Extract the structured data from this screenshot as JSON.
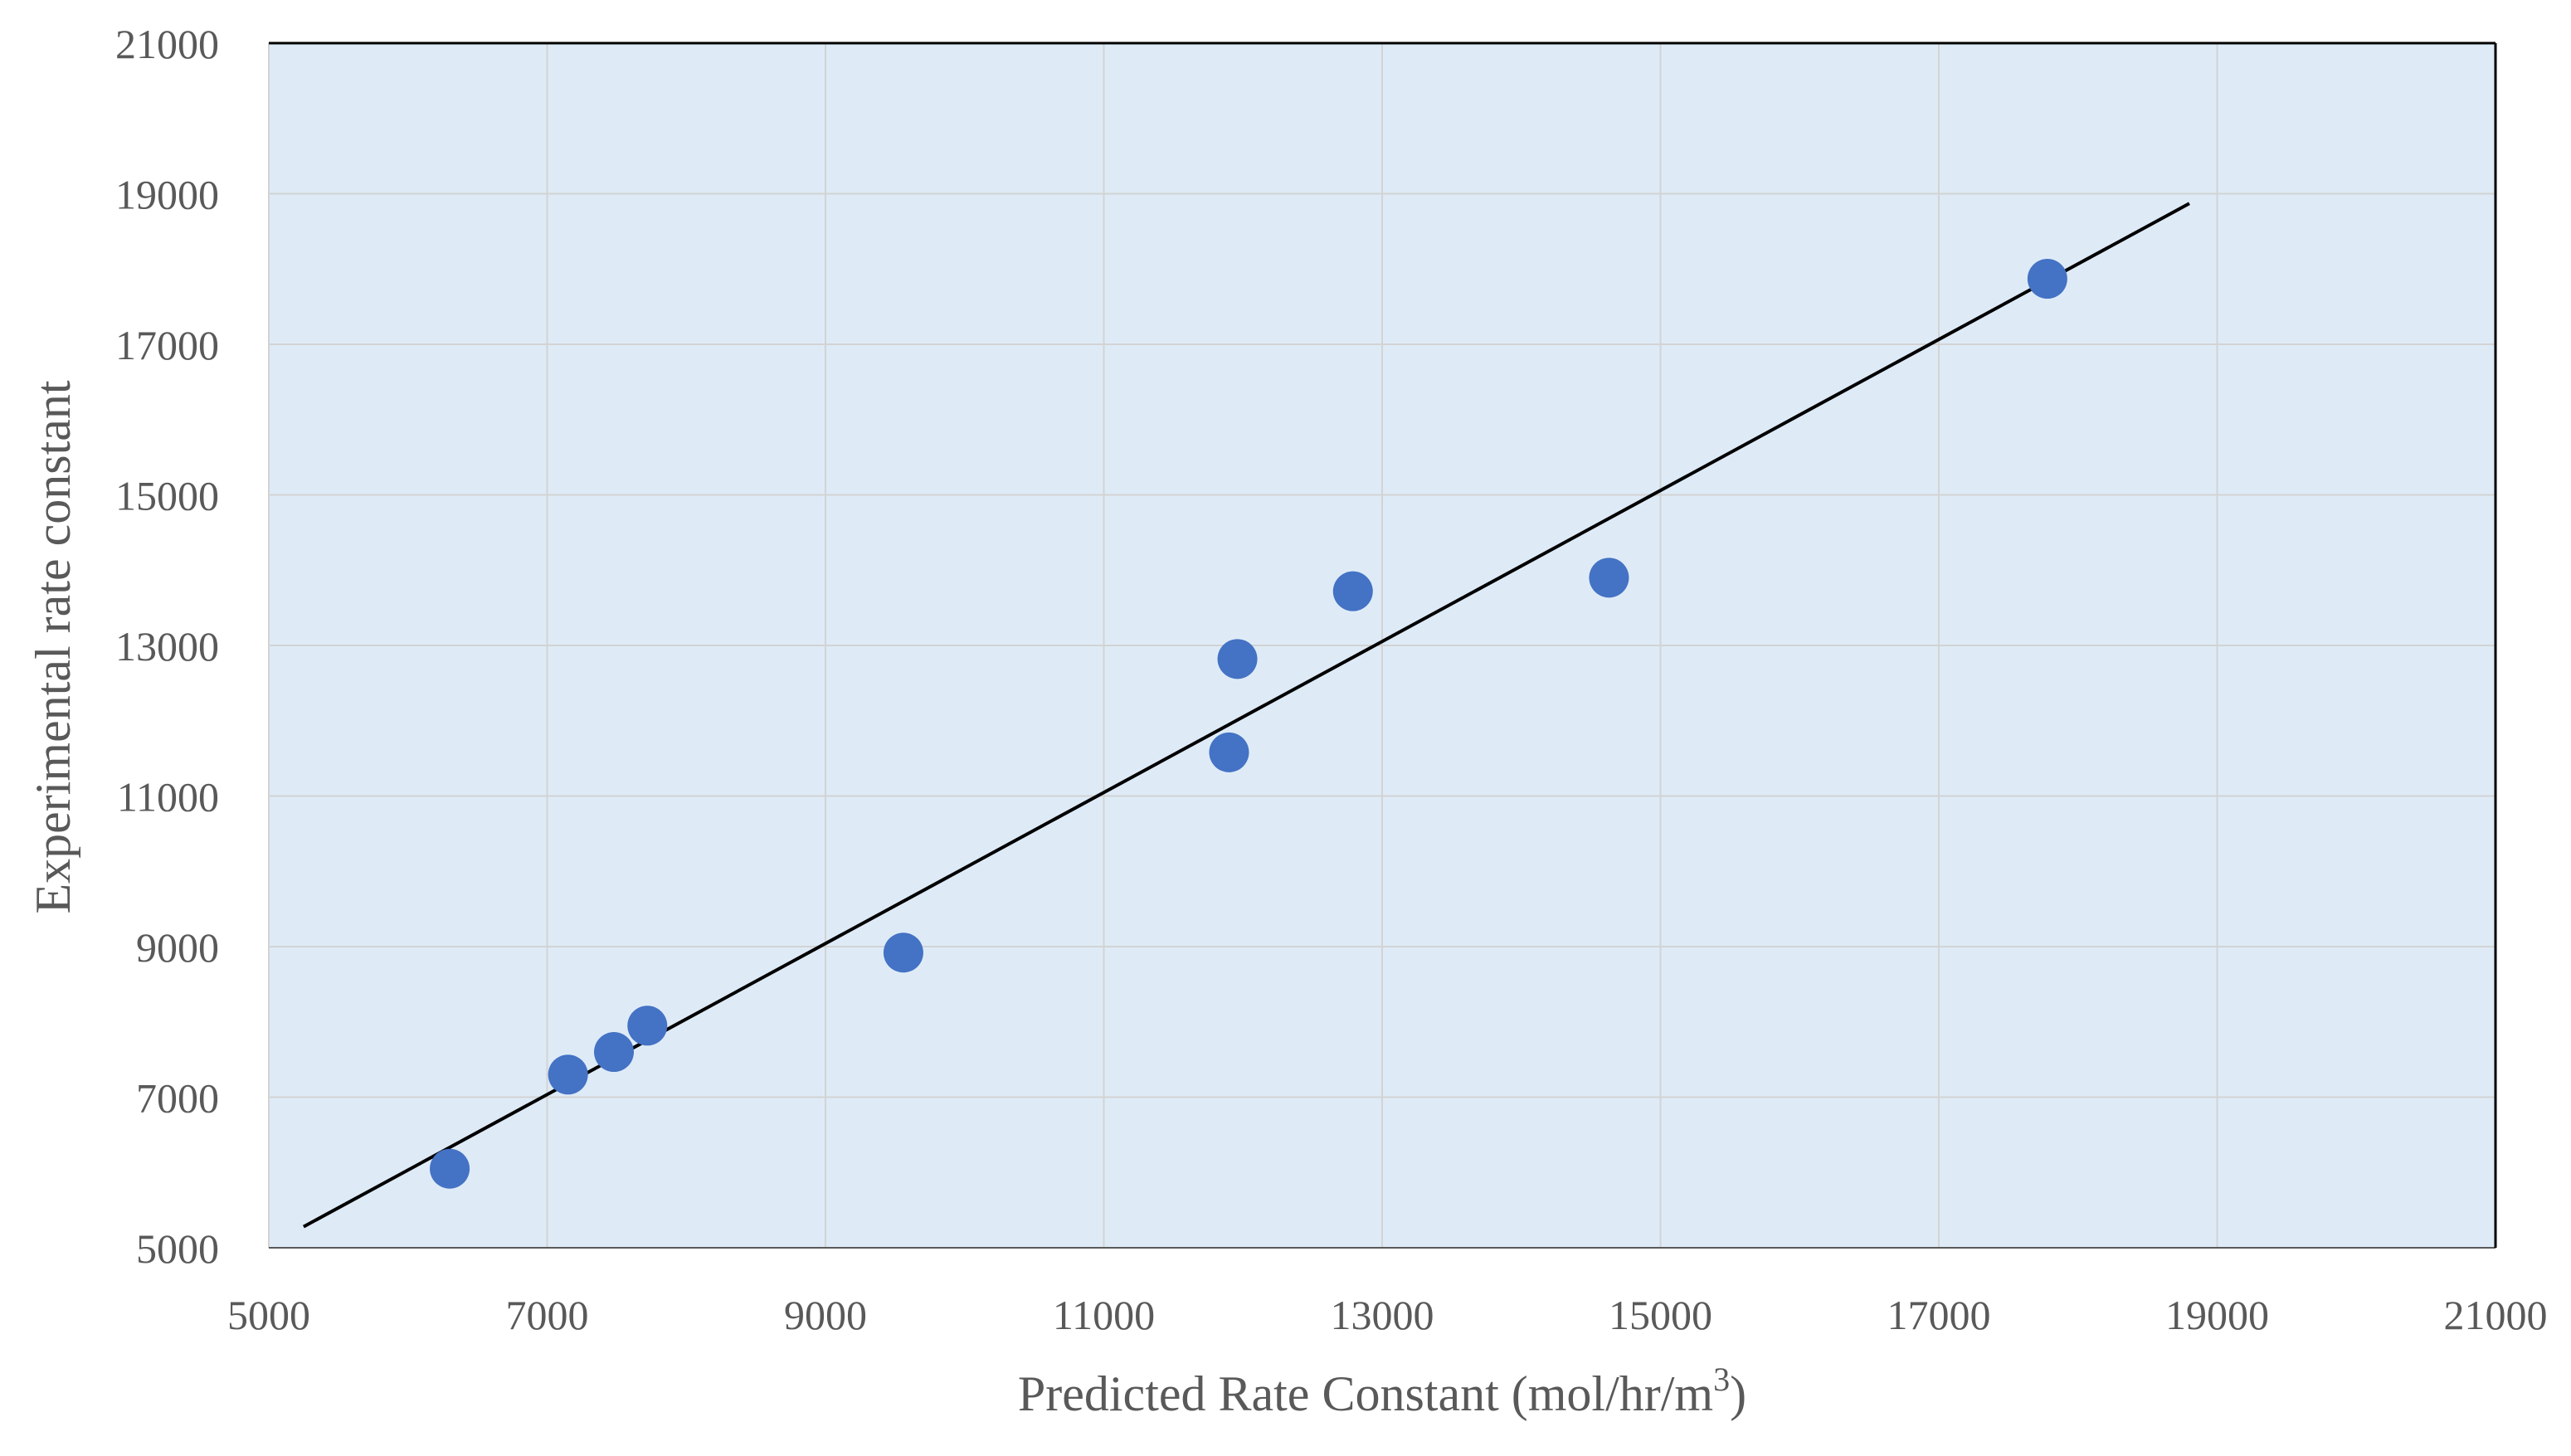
{
  "chart_data": {
    "type": "scatter",
    "title": "",
    "xlabel": "Predicted Rate Constant (mol/hr/m",
    "xlabel_superscript": "3",
    "xlabel_suffix": ")",
    "ylabel": "Experimental  rate constant",
    "xlim": [
      5000,
      21000
    ],
    "ylim": [
      5000,
      21000
    ],
    "x_ticks": [
      "5000",
      "7000",
      "9000",
      "11000",
      "13000",
      "15000",
      "17000",
      "19000",
      "21000"
    ],
    "y_ticks": [
      "5000",
      "7000",
      "9000",
      "11000",
      "13000",
      "15000",
      "17000",
      "19000",
      "21000"
    ],
    "grid": true,
    "legend": "none",
    "series": [
      {
        "points": [
          {
            "x": 6300,
            "y": 6050
          },
          {
            "x": 7150,
            "y": 7300
          },
          {
            "x": 7480,
            "y": 7600
          },
          {
            "x": 7720,
            "y": 7950
          },
          {
            "x": 9560,
            "y": 8920
          },
          {
            "x": 11900,
            "y": 11580
          },
          {
            "x": 11960,
            "y": 12820
          },
          {
            "x": 12790,
            "y": 13720
          },
          {
            "x": 14630,
            "y": 13900
          },
          {
            "x": 17780,
            "y": 17870
          }
        ]
      }
    ],
    "trendline": {
      "x": [
        5250,
        18800
      ],
      "y": [
        5280,
        18870
      ]
    },
    "colors": {
      "plot_background": "#deebf7",
      "marker": "#4472c4",
      "trendline": "#000000",
      "grid": "#d3d3d3",
      "text": "#595959"
    }
  }
}
